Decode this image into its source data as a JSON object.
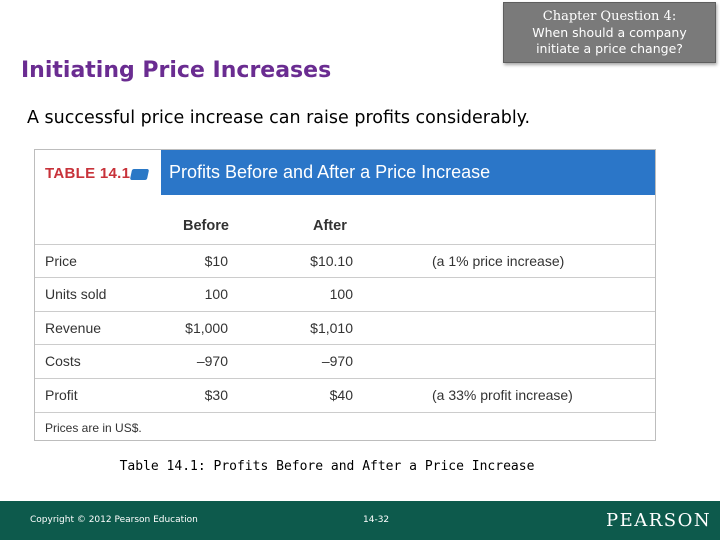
{
  "chapter_question": {
    "line1": "Chapter Question 4:",
    "line2": "When should a company",
    "line3": "initiate a price change?"
  },
  "slide_title": "Initiating Price Increases",
  "subtitle": "A successful price increase can raise profits considerably.",
  "table": {
    "tag": "TABLE 14.1",
    "title": "Profits Before and After a Price Increase",
    "columns": [
      "Before",
      "After"
    ],
    "rows": [
      {
        "label": "Price",
        "before": "$10",
        "after": "$10.10",
        "note": "(a 1% price increase)"
      },
      {
        "label": "Units sold",
        "before": "100",
        "after": "100",
        "note": ""
      },
      {
        "label": "Revenue",
        "before": "$1,000",
        "after": "$1,010",
        "note": ""
      },
      {
        "label": "Costs",
        "before": "–970",
        "after": "–970",
        "note": ""
      },
      {
        "label": "Profit",
        "before": "$30",
        "after": "$40",
        "note": "(a 33% profit increase)"
      }
    ],
    "footnote": "Prices are in US$."
  },
  "caption": "Table 14.1: Profits Before and After a Price Increase",
  "footer": {
    "copyright": "Copyright © 2012 Pearson Education",
    "page": "14-32",
    "logo": "PEARSON"
  },
  "colors": {
    "title": "#6a2c91",
    "table_band": "#2b76c8",
    "tag_text": "#c8323a",
    "footer": "#0d5a4c",
    "chapter_box": "#7a7a7a"
  }
}
